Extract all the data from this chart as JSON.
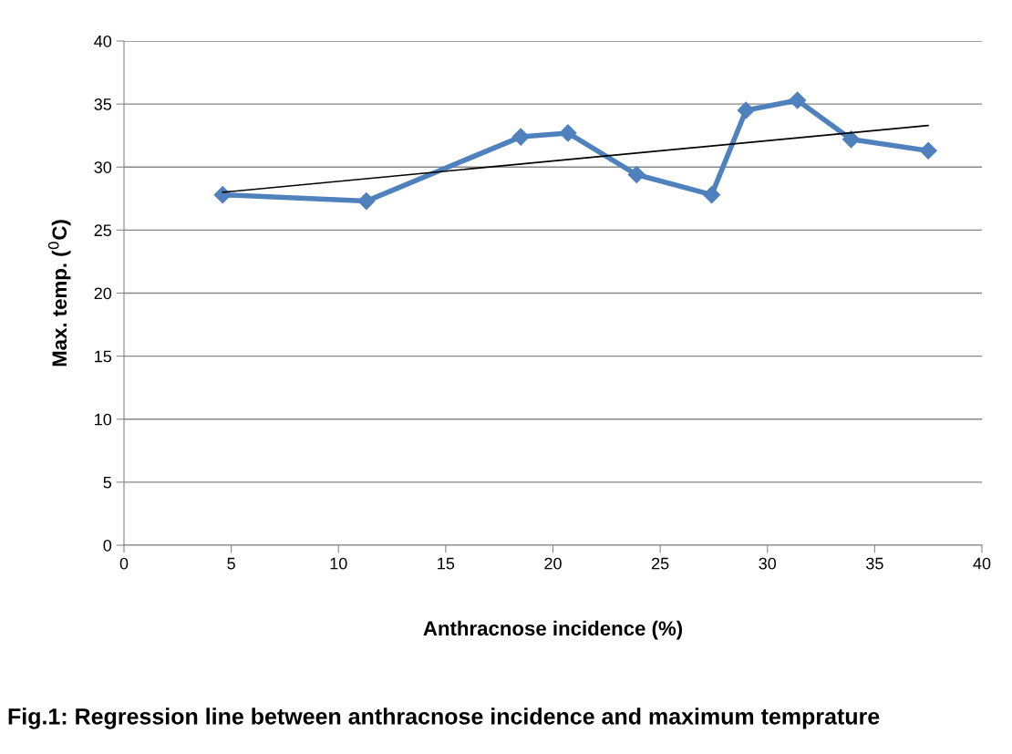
{
  "chart_data": {
    "type": "line",
    "title": "Fig.1: Regression line between anthracnose incidence and maximum temprature",
    "xlabel": "Anthracnose incidence (%)",
    "ylabel": "Max. temp. ($^{0}$C)",
    "series": [
      {
        "color": "#4f81bd",
        "marker": "diamond",
        "x": [
          4.6,
          11.3,
          18.5,
          20.7,
          23.9,
          27.4,
          29.0,
          31.4,
          33.9,
          37.5
        ],
        "values": [
          27.8,
          27.3,
          32.4,
          32.7,
          29.4,
          27.8,
          34.5,
          35.3,
          32.2,
          31.3
        ]
      },
      {
        "color": "#000000",
        "marker": "none",
        "x": [
          4.6,
          37.5
        ],
        "values": [
          28.0,
          33.3
        ]
      }
    ],
    "xlim": [
      0,
      40
    ],
    "xticks": [
      0,
      5,
      10,
      15,
      20,
      25,
      30,
      35,
      40
    ],
    "ylim": [
      0,
      40
    ],
    "yticks": [
      0,
      5,
      10,
      15,
      20,
      25,
      30,
      35,
      40
    ],
    "grid": "y",
    "legend": false
  }
}
